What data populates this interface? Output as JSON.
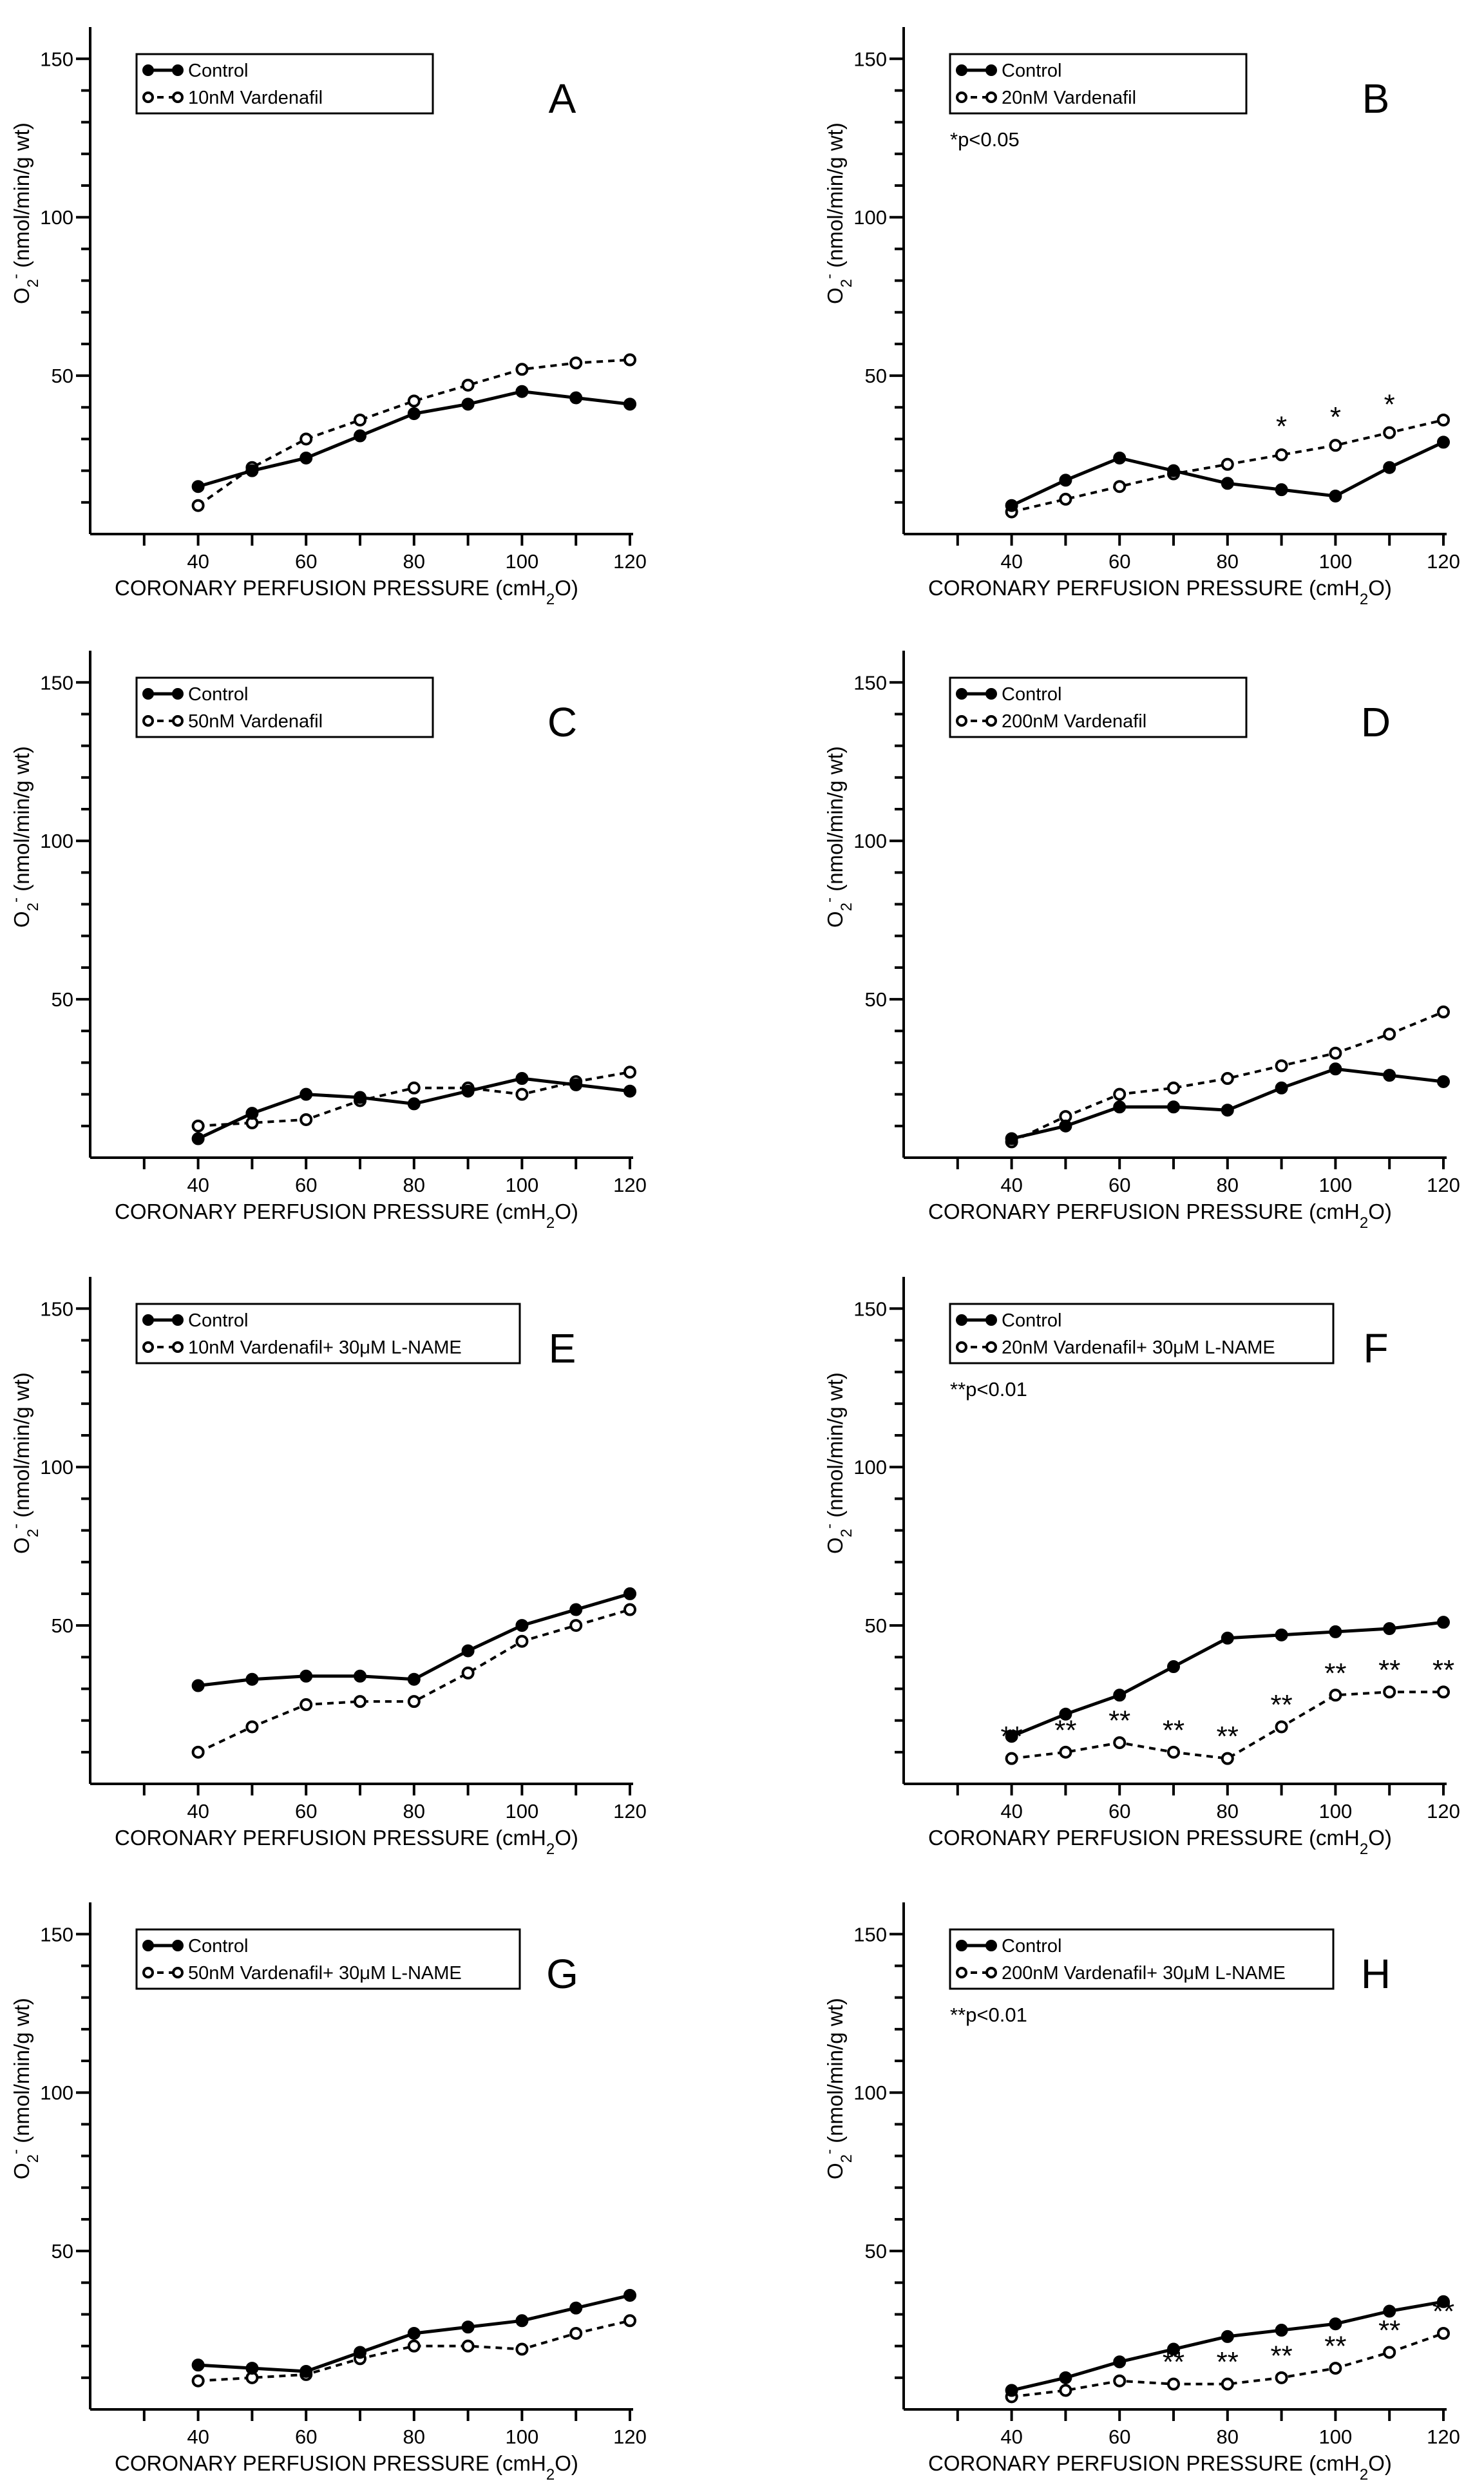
{
  "figure": {
    "x_axis_title": "CORONARY PERFUSION PRESSURE (cmH",
    "x_axis_title_sub": "2",
    "x_axis_title_end": "O)",
    "y_axis_title_main": "O",
    "y_axis_title_sub": "2",
    "y_axis_title_sup": "-",
    "y_axis_title_rest": " (nmol/min/g wt)",
    "control_label": "Control"
  },
  "chart_data": [
    {
      "type": "line",
      "panel": "A",
      "x": [
        40,
        50,
        60,
        70,
        80,
        90,
        100,
        110,
        120
      ],
      "xlim": [
        20,
        120
      ],
      "ylim": [
        0,
        160
      ],
      "xticks": [
        40,
        60,
        80,
        100,
        120
      ],
      "yticks": [
        50,
        100,
        150
      ],
      "series": [
        {
          "name": "Control",
          "style": "control",
          "values": [
            15,
            20,
            24,
            31,
            38,
            41,
            45,
            43,
            41
          ]
        },
        {
          "name": "10nM Vardenafil",
          "style": "treat",
          "values": [
            9,
            21,
            30,
            36,
            42,
            47,
            52,
            54,
            55
          ]
        }
      ],
      "significance_note": "",
      "stars": []
    },
    {
      "type": "line",
      "panel": "B",
      "x": [
        40,
        50,
        60,
        70,
        80,
        90,
        100,
        110,
        120
      ],
      "xlim": [
        20,
        120
      ],
      "ylim": [
        0,
        160
      ],
      "xticks": [
        40,
        60,
        80,
        100,
        120
      ],
      "yticks": [
        50,
        100,
        150
      ],
      "series": [
        {
          "name": "Control",
          "style": "control",
          "values": [
            9,
            17,
            24,
            20,
            16,
            14,
            12,
            21,
            29
          ]
        },
        {
          "name": "20nM Vardenafil",
          "style": "treat",
          "values": [
            7,
            11,
            15,
            19,
            22,
            25,
            28,
            32,
            36
          ]
        }
      ],
      "significance_note": "*p<0.05",
      "stars": [
        {
          "x": 90,
          "label": "*"
        },
        {
          "x": 100,
          "label": "*"
        },
        {
          "x": 110,
          "label": "*"
        }
      ]
    },
    {
      "type": "line",
      "panel": "C",
      "x": [
        40,
        50,
        60,
        70,
        80,
        90,
        100,
        110,
        120
      ],
      "xlim": [
        20,
        120
      ],
      "ylim": [
        0,
        160
      ],
      "xticks": [
        40,
        60,
        80,
        100,
        120
      ],
      "yticks": [
        50,
        100,
        150
      ],
      "series": [
        {
          "name": "Control",
          "style": "control",
          "values": [
            6,
            14,
            20,
            19,
            17,
            21,
            25,
            23,
            21
          ]
        },
        {
          "name": "50nM Vardenafil",
          "style": "treat",
          "values": [
            10,
            11,
            12,
            18,
            22,
            22,
            20,
            24,
            27
          ]
        }
      ],
      "significance_note": "",
      "stars": []
    },
    {
      "type": "line",
      "panel": "D",
      "x": [
        40,
        50,
        60,
        70,
        80,
        90,
        100,
        110,
        120
      ],
      "xlim": [
        20,
        120
      ],
      "ylim": [
        0,
        160
      ],
      "xticks": [
        40,
        60,
        80,
        100,
        120
      ],
      "yticks": [
        50,
        100,
        150
      ],
      "series": [
        {
          "name": "Control",
          "style": "control",
          "values": [
            6,
            10,
            16,
            16,
            15,
            22,
            28,
            26,
            24
          ]
        },
        {
          "name": "200nM Vardenafil",
          "style": "treat",
          "values": [
            5,
            13,
            20,
            22,
            25,
            29,
            33,
            39,
            46
          ]
        }
      ],
      "significance_note": "",
      "stars": []
    },
    {
      "type": "line",
      "panel": "E",
      "x": [
        40,
        50,
        60,
        70,
        80,
        90,
        100,
        110,
        120
      ],
      "xlim": [
        20,
        120
      ],
      "ylim": [
        0,
        160
      ],
      "xticks": [
        40,
        60,
        80,
        100,
        120
      ],
      "yticks": [
        50,
        100,
        150
      ],
      "series": [
        {
          "name": "Control",
          "style": "control",
          "values": [
            31,
            33,
            34,
            34,
            33,
            42,
            50,
            55,
            60
          ]
        },
        {
          "name": "10nM Vardenafil+ 30μM L-NAME",
          "style": "treat",
          "values": [
            10,
            18,
            25,
            26,
            26,
            35,
            45,
            50,
            55
          ]
        }
      ],
      "significance_note": "",
      "stars": []
    },
    {
      "type": "line",
      "panel": "F",
      "x": [
        40,
        50,
        60,
        70,
        80,
        90,
        100,
        110,
        120
      ],
      "xlim": [
        20,
        120
      ],
      "ylim": [
        0,
        160
      ],
      "xticks": [
        40,
        60,
        80,
        100,
        120
      ],
      "yticks": [
        50,
        100,
        150
      ],
      "series": [
        {
          "name": "Control",
          "style": "control",
          "values": [
            15,
            22,
            28,
            37,
            46,
            47,
            48,
            49,
            51
          ]
        },
        {
          "name": "20nM Vardenafil+ 30μM L-NAME",
          "style": "treat",
          "values": [
            8,
            10,
            13,
            10,
            8,
            18,
            28,
            29,
            29
          ]
        }
      ],
      "significance_note": "**p<0.01",
      "stars": [
        {
          "x": 40,
          "label": "**"
        },
        {
          "x": 50,
          "label": "**"
        },
        {
          "x": 60,
          "label": "**"
        },
        {
          "x": 70,
          "label": "**"
        },
        {
          "x": 80,
          "label": "**"
        },
        {
          "x": 90,
          "label": "**"
        },
        {
          "x": 100,
          "label": "**"
        },
        {
          "x": 110,
          "label": "**"
        },
        {
          "x": 120,
          "label": "**"
        }
      ]
    },
    {
      "type": "line",
      "panel": "G",
      "x": [
        40,
        50,
        60,
        70,
        80,
        90,
        100,
        110,
        120
      ],
      "xlim": [
        20,
        120
      ],
      "ylim": [
        0,
        160
      ],
      "xticks": [
        40,
        60,
        80,
        100,
        120
      ],
      "yticks": [
        50,
        100,
        150
      ],
      "series": [
        {
          "name": "Control",
          "style": "control",
          "values": [
            14,
            13,
            12,
            18,
            24,
            26,
            28,
            32,
            36
          ]
        },
        {
          "name": "50nM Vardenafil+ 30μM L-NAME",
          "style": "treat",
          "values": [
            9,
            10,
            11,
            16,
            20,
            20,
            19,
            24,
            28
          ]
        }
      ],
      "significance_note": "",
      "stars": []
    },
    {
      "type": "line",
      "panel": "H",
      "x": [
        40,
        50,
        60,
        70,
        80,
        90,
        100,
        110,
        120
      ],
      "xlim": [
        20,
        120
      ],
      "ylim": [
        0,
        160
      ],
      "xticks": [
        40,
        60,
        80,
        100,
        120
      ],
      "yticks": [
        50,
        100,
        150
      ],
      "series": [
        {
          "name": "Control",
          "style": "control",
          "values": [
            6,
            10,
            15,
            19,
            23,
            25,
            27,
            31,
            34
          ]
        },
        {
          "name": "200nM Vardenafil+ 30μM L-NAME",
          "style": "treat",
          "values": [
            4,
            6,
            9,
            8,
            8,
            10,
            13,
            18,
            24
          ]
        }
      ],
      "significance_note": "**p<0.01",
      "stars": [
        {
          "x": 70,
          "label": "**"
        },
        {
          "x": 80,
          "label": "**"
        },
        {
          "x": 90,
          "label": "**"
        },
        {
          "x": 100,
          "label": "**"
        },
        {
          "x": 110,
          "label": "**"
        },
        {
          "x": 120,
          "label": "**"
        }
      ]
    }
  ]
}
